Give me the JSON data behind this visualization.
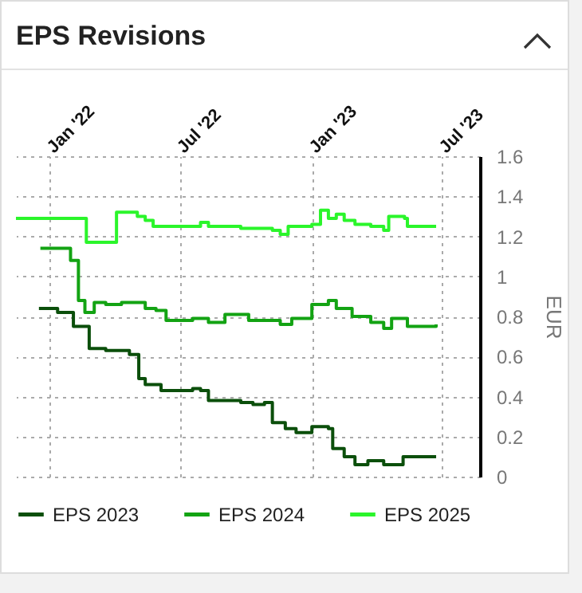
{
  "chart_data": {
    "type": "step",
    "title": "EPS Revisions",
    "ylabel": "EUR",
    "xlim": [
      "2021-11-15",
      "2023-08-23"
    ],
    "xticks": [
      {
        "value": "2022-01",
        "label": "Jan '22"
      },
      {
        "value": "2022-07",
        "label": "Jul '22"
      },
      {
        "value": "2023-01",
        "label": "Jan '23"
      },
      {
        "value": "2023-07",
        "label": "Jul '23"
      }
    ],
    "ylim": [
      0,
      1.6
    ],
    "yticks": [
      0,
      0.2,
      0.4,
      0.6,
      0.8,
      1,
      1.2,
      1.4,
      1.6
    ],
    "grid": true,
    "legend": "bottom",
    "series": [
      {
        "name": "EPS 2023",
        "color": "#0b4f0b",
        "x": [
          "2021-12-17",
          "2022-01-12",
          "2022-02-03",
          "2022-02-25",
          "2022-03-20",
          "2022-04-22",
          "2022-05-05",
          "2022-05-14",
          "2022-06-05",
          "2022-07-19",
          "2022-07-30",
          "2022-08-10",
          "2022-09-24",
          "2022-10-11",
          "2022-10-27",
          "2022-11-07",
          "2022-11-25",
          "2022-12-10",
          "2023-01-01",
          "2023-01-24",
          "2023-01-30",
          "2023-02-15",
          "2023-03-02",
          "2023-03-20",
          "2023-04-11",
          "2023-04-29",
          "2023-05-08",
          "2023-06-23"
        ],
        "values": [
          0.84,
          0.82,
          0.75,
          0.64,
          0.63,
          0.61,
          0.49,
          0.46,
          0.43,
          0.44,
          0.43,
          0.38,
          0.37,
          0.36,
          0.37,
          0.27,
          0.24,
          0.22,
          0.25,
          0.24,
          0.14,
          0.1,
          0.06,
          0.08,
          0.06,
          0.06,
          0.1,
          0.1
        ]
      },
      {
        "name": "EPS 2024",
        "color": "#13a313",
        "x": [
          "2021-12-19",
          "2022-01-30",
          "2022-02-10",
          "2022-02-19",
          "2022-03-04",
          "2022-03-20",
          "2022-04-11",
          "2022-05-14",
          "2022-05-29",
          "2022-06-12",
          "2022-07-19",
          "2022-08-10",
          "2022-09-02",
          "2022-10-05",
          "2022-11-18",
          "2022-12-04",
          "2023-01-01",
          "2023-01-24",
          "2023-02-04",
          "2023-02-26",
          "2023-03-24",
          "2023-04-11",
          "2023-04-22",
          "2023-05-10",
          "2023-05-14",
          "2023-06-23"
        ],
        "values": [
          1.14,
          1.08,
          0.88,
          0.82,
          0.87,
          0.86,
          0.87,
          0.84,
          0.83,
          0.78,
          0.79,
          0.77,
          0.81,
          0.78,
          0.76,
          0.79,
          0.86,
          0.88,
          0.84,
          0.8,
          0.77,
          0.74,
          0.79,
          0.79,
          0.75,
          0.76
        ]
      },
      {
        "name": "EPS 2025",
        "color": "#2bf52b",
        "x": [
          "2021-11-15",
          "2022-02-21",
          "2022-04-04",
          "2022-05-03",
          "2022-05-14",
          "2022-05-25",
          "2022-07-30",
          "2022-08-10",
          "2022-09-24",
          "2022-11-07",
          "2022-11-18",
          "2022-11-29",
          "2023-01-01",
          "2023-01-13",
          "2023-01-24",
          "2023-02-04",
          "2023-02-15",
          "2023-03-02",
          "2023-03-24",
          "2023-04-11",
          "2023-04-18",
          "2023-05-10",
          "2023-05-14",
          "2023-06-23"
        ],
        "values": [
          1.29,
          1.17,
          1.32,
          1.3,
          1.28,
          1.25,
          1.27,
          1.25,
          1.24,
          1.23,
          1.21,
          1.25,
          1.26,
          1.33,
          1.29,
          1.31,
          1.28,
          1.26,
          1.25,
          1.23,
          1.3,
          1.29,
          1.25,
          1.25
        ]
      }
    ]
  }
}
